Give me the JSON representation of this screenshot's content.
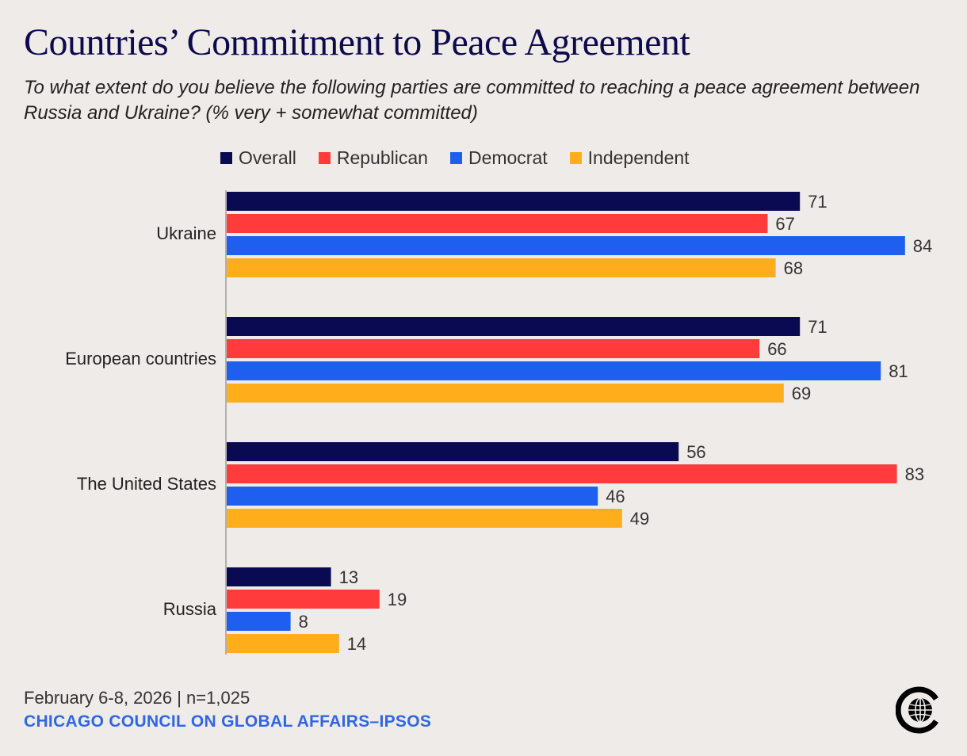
{
  "title": "Countries’ Commitment to Peace Agreement",
  "subtitle": "To what extent do you believe the following parties are committed to reaching a peace agreement between Russia and Ukraine? (% very + somewhat committed)",
  "footer": {
    "date": "February 6-8, 2026 | n=1,025",
    "source": "CHICAGO COUNCIL ON GLOBAL AFFAIRS–IPSOS"
  },
  "logo_icon": "chicago-council-globe-logo-icon",
  "chart_data": {
    "type": "bar",
    "orientation": "horizontal",
    "categories": [
      "Ukraine",
      "European countries",
      "The United States",
      "Russia"
    ],
    "series": [
      {
        "name": "Overall",
        "color": "#0a0a52",
        "values": [
          71,
          71,
          56,
          13
        ]
      },
      {
        "name": "Republican",
        "color": "#ff3b3b",
        "values": [
          67,
          66,
          83,
          19
        ]
      },
      {
        "name": "Democrat",
        "color": "#1f5ff0",
        "values": [
          84,
          81,
          46,
          8
        ]
      },
      {
        "name": "Independent",
        "color": "#ffad1a",
        "values": [
          68,
          69,
          49,
          14
        ]
      }
    ],
    "xlim": [
      0,
      100
    ],
    "legend_position": "top",
    "grid": false
  }
}
